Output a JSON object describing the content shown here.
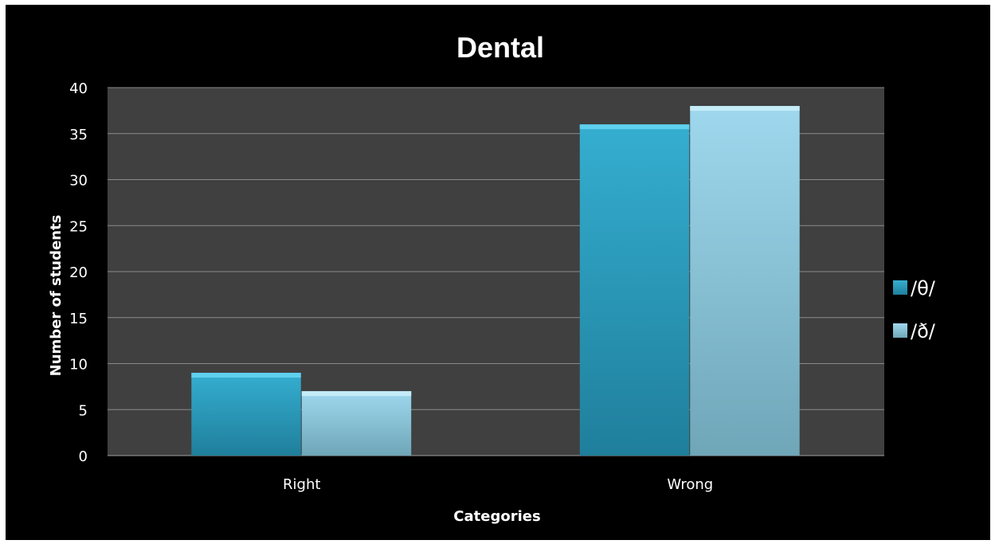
{
  "chart_data": {
    "type": "bar",
    "title": "Dental",
    "xlabel": "Categories",
    "ylabel": "Number of students",
    "categories": [
      "Right",
      "Wrong"
    ],
    "series": [
      {
        "name": "/θ/",
        "values": [
          9,
          36
        ],
        "color": "#2ea4c6"
      },
      {
        "name": "/ð/",
        "values": [
          7,
          38
        ],
        "color": "#8ccfe6"
      }
    ],
    "ylim": [
      0,
      40
    ],
    "ytick_step": 5,
    "grid": true,
    "legend_position": "right",
    "plot_background": "#404040",
    "background": "#000000"
  }
}
